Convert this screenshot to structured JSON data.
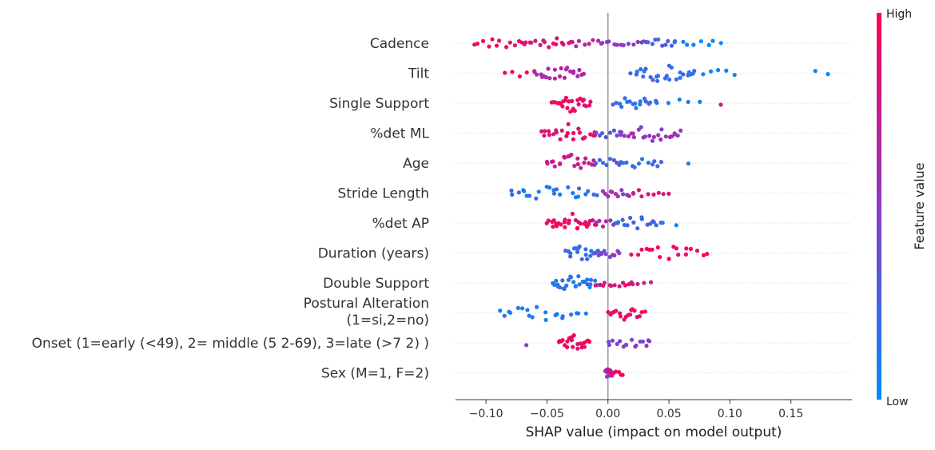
{
  "chart_data": {
    "type": "scatter",
    "subtype": "shap-beeswarm",
    "xlabel": "SHAP value (impact on model output)",
    "xlim": [
      -0.125,
      0.2
    ],
    "x_ticks": [
      -0.1,
      -0.05,
      0.0,
      0.05,
      0.1,
      0.15
    ],
    "x_tick_labels": [
      "−0.10",
      "−0.05",
      "0.00",
      "0.05",
      "0.10",
      "0.15"
    ],
    "features": [
      {
        "label": "Cadence",
        "ranges": [
          [
            -0.11,
            -0.07,
            0.95,
            12
          ],
          [
            -0.07,
            -0.03,
            0.85,
            16
          ],
          [
            -0.03,
            -0.005,
            0.65,
            8
          ],
          [
            -0.005,
            0.03,
            0.5,
            12
          ],
          [
            0.03,
            0.055,
            0.3,
            10
          ],
          [
            0.055,
            0.092,
            0.05,
            8
          ]
        ]
      },
      {
        "label": "Tilt",
        "ranges": [
          [
            -0.085,
            -0.06,
            0.95,
            5
          ],
          [
            -0.06,
            -0.02,
            0.65,
            22
          ],
          [
            0.02,
            0.07,
            0.2,
            25
          ],
          [
            0.07,
            0.105,
            0.1,
            6
          ],
          [
            0.17,
            0.18,
            0.05,
            2
          ]
        ]
      },
      {
        "label": "Single Support",
        "ranges": [
          [
            -0.045,
            -0.015,
            0.92,
            28
          ],
          [
            0.005,
            0.04,
            0.2,
            18
          ],
          [
            0.04,
            0.075,
            0.1,
            5
          ],
          [
            0.09,
            0.095,
            0.7,
            1
          ]
        ]
      },
      {
        "label": "%det ML",
        "ranges": [
          [
            -0.055,
            -0.01,
            0.88,
            24
          ],
          [
            -0.01,
            0.01,
            0.3,
            8
          ],
          [
            0.01,
            0.06,
            0.55,
            24
          ]
        ]
      },
      {
        "label": "Age",
        "ranges": [
          [
            -0.05,
            -0.01,
            0.75,
            22
          ],
          [
            -0.01,
            0.01,
            0.3,
            8
          ],
          [
            0.01,
            0.045,
            0.2,
            12
          ],
          [
            0.065,
            0.067,
            0.1,
            1
          ]
        ]
      },
      {
        "label": "Stride Length",
        "ranges": [
          [
            -0.08,
            -0.01,
            0.15,
            24
          ],
          [
            -0.005,
            0.02,
            0.55,
            12
          ],
          [
            0.02,
            0.05,
            0.85,
            8
          ]
        ]
      },
      {
        "label": "%det AP",
        "ranges": [
          [
            -0.05,
            -0.01,
            0.92,
            28
          ],
          [
            -0.01,
            0.005,
            0.6,
            6
          ],
          [
            0.005,
            0.045,
            0.2,
            18
          ],
          [
            0.055,
            0.057,
            0.1,
            1
          ]
        ]
      },
      {
        "label": "Duration (years)",
        "ranges": [
          [
            -0.035,
            -0.005,
            0.2,
            20
          ],
          [
            -0.01,
            0.01,
            0.45,
            10
          ],
          [
            0.02,
            0.08,
            0.95,
            18
          ]
        ]
      },
      {
        "label": "Double Support",
        "ranges": [
          [
            -0.045,
            -0.01,
            0.15,
            28
          ],
          [
            -0.01,
            0.02,
            0.85,
            12
          ],
          [
            0.02,
            0.035,
            0.7,
            4
          ]
        ]
      },
      {
        "label": "Postural Alteration\n(1=si,2=no)",
        "ranges": [
          [
            -0.09,
            -0.02,
            0.1,
            20
          ],
          [
            0.0,
            0.03,
            0.92,
            18
          ]
        ]
      },
      {
        "label": "Onset (1=early (<49), 2= middle (5 2-69), 3=late (>7 2) )",
        "ranges": [
          [
            -0.04,
            -0.015,
            0.95,
            22
          ],
          [
            0.0,
            0.035,
            0.45,
            16
          ],
          [
            -0.068,
            -0.066,
            0.5,
            1
          ]
        ]
      },
      {
        "label": "Sex (M=1, F=2)",
        "ranges": [
          [
            -0.002,
            0.002,
            0.5,
            10
          ],
          [
            0.0,
            0.012,
            0.95,
            8
          ]
        ]
      }
    ],
    "colorbar": {
      "title": "Feature value",
      "high_label": "High",
      "low_label": "Low",
      "low_color": "#008bfb",
      "mid_color": "#8c3ac5",
      "high_color": "#ff0052"
    },
    "axis_color": "#333333",
    "zero_line_color": "#999999"
  }
}
